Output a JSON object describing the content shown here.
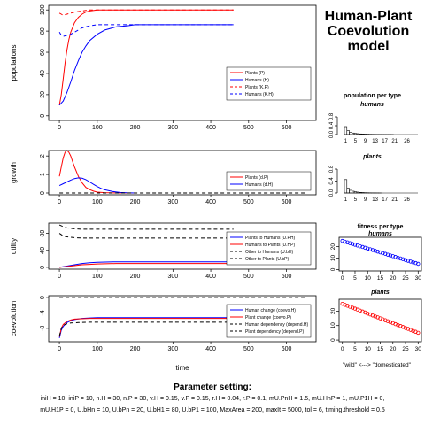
{
  "title_lines": [
    "Human-Plant",
    "Coevolution",
    "model"
  ],
  "parameters": {
    "heading": "Parameter setting:",
    "line1": "iniH = 10, iniP = 10, n.H = 30, n.P = 30, v.H = 0.15, v.P = 0.15, r.H = 0.04, r.P = 0.1, mU.PnH = 1.5, mU.HnP = 1, mU.P1H = 0,",
    "line2": "mU.H1P = 0, U.bHn = 10, U.bPn = 20, U.bH1 = 80, U.bP1 = 100, MaxArea = 200, maxIt = 5000, tol = 6, timing.threshold = 0.5"
  },
  "colors": {
    "plants": "#ff0000",
    "humans": "#0000ff",
    "axis": "#000000",
    "grid_dash": "#000000",
    "fitness_humans": "#0000ff",
    "fitness_plants": "#ff0000"
  },
  "chart_data": [
    {
      "id": "populations",
      "type": "line",
      "ylabel": "populations",
      "xlim": [
        0,
        650
      ],
      "ylim": [
        0,
        100
      ],
      "xticks": [
        0,
        100,
        200,
        300,
        400,
        500,
        600
      ],
      "yticks": [
        0,
        20,
        40,
        60,
        80,
        100
      ],
      "legend": {
        "position": "right",
        "entries": [
          "Plants (P)",
          "Humans (H)",
          "Plants (K.P)",
          "Humans (K.H)"
        ]
      },
      "series": [
        {
          "name": "Plants (P)",
          "color": "#ff0000",
          "dash": false,
          "x": [
            0,
            5,
            10,
            15,
            20,
            25,
            30,
            40,
            50,
            60,
            70,
            80,
            100,
            120,
            150,
            200,
            250,
            300,
            350,
            400,
            460
          ],
          "y": [
            10,
            20,
            35,
            50,
            62,
            72,
            79,
            88,
            93,
            96,
            98,
            99,
            100,
            100,
            100,
            100,
            100,
            100,
            100,
            100,
            100
          ]
        },
        {
          "name": "Humans (H)",
          "color": "#0000ff",
          "dash": false,
          "x": [
            0,
            10,
            20,
            30,
            40,
            50,
            60,
            70,
            80,
            100,
            120,
            150,
            180,
            200,
            250,
            300,
            350,
            400,
            460
          ],
          "y": [
            10,
            14,
            22,
            32,
            43,
            52,
            60,
            66,
            71,
            77,
            81,
            84,
            85,
            86,
            86,
            86,
            86,
            86,
            86
          ]
        },
        {
          "name": "Plants (K.P)",
          "color": "#ff0000",
          "dash": true,
          "x": [
            0,
            5,
            10,
            20,
            30,
            40,
            60,
            80,
            100,
            150,
            200,
            300,
            400,
            460
          ],
          "y": [
            97,
            96,
            95,
            96,
            97,
            98,
            99,
            100,
            100,
            100,
            100,
            100,
            100,
            100
          ]
        },
        {
          "name": "Humans (K.H)",
          "color": "#0000ff",
          "dash": true,
          "x": [
            0,
            5,
            10,
            20,
            30,
            40,
            50,
            60,
            80,
            100,
            150,
            200,
            300,
            400,
            460
          ],
          "y": [
            79,
            76,
            75,
            76,
            77,
            79,
            81,
            83,
            85,
            86,
            86,
            86,
            86,
            86,
            86
          ]
        }
      ]
    },
    {
      "id": "growth",
      "type": "line",
      "ylabel": "growth",
      "xlim": [
        0,
        650
      ],
      "ylim": [
        0,
        2.2
      ],
      "xticks": [
        0,
        100,
        200,
        300,
        400,
        500,
        600
      ],
      "yticks": [
        0.0,
        1.0,
        2.0
      ],
      "legend": {
        "position": "right",
        "entries": [
          "Plants (d.P)",
          "Humans (d.H)"
        ]
      },
      "series": [
        {
          "name": "Plants (d.P)",
          "color": "#ff0000",
          "dash": false,
          "x": [
            0,
            5,
            10,
            15,
            20,
            25,
            30,
            35,
            40,
            50,
            60,
            70,
            80,
            90,
            100,
            120,
            150,
            200
          ],
          "y": [
            0.9,
            1.4,
            1.9,
            2.2,
            2.3,
            2.2,
            2.0,
            1.7,
            1.4,
            0.9,
            0.55,
            0.3,
            0.18,
            0.1,
            0.05,
            0.02,
            0.0,
            0.0
          ]
        },
        {
          "name": "Humans (d.H)",
          "color": "#0000ff",
          "dash": false,
          "x": [
            0,
            10,
            20,
            30,
            40,
            50,
            60,
            70,
            80,
            90,
            100,
            110,
            120,
            140,
            160,
            180,
            200
          ],
          "y": [
            0.4,
            0.5,
            0.6,
            0.7,
            0.78,
            0.82,
            0.8,
            0.72,
            0.6,
            0.47,
            0.35,
            0.25,
            0.17,
            0.08,
            0.03,
            0.01,
            0.0
          ]
        },
        {
          "name": "",
          "color": "#000000",
          "dash": true,
          "x": [
            0,
            650
          ],
          "y": [
            0,
            0
          ]
        }
      ]
    },
    {
      "id": "utility",
      "type": "line",
      "ylabel": "utility",
      "xlim": [
        0,
        650
      ],
      "ylim": [
        0,
        100
      ],
      "xticks": [
        0,
        100,
        200,
        300,
        400,
        500,
        600
      ],
      "yticks": [
        0,
        40,
        80
      ],
      "legend": {
        "position": "right",
        "entries": [
          "Plants to Humans (U.PH)",
          "Humans to Plants (U.HP)",
          "Other to Humans (U.bH)",
          "Other to Plants (U.bP)"
        ]
      },
      "series": [
        {
          "name": "Plants to Humans (U.PH)",
          "color": "#0000ff",
          "dash": false,
          "x": [
            0,
            20,
            40,
            60,
            80,
            100,
            150,
            200,
            300,
            460
          ],
          "y": [
            0,
            3,
            6,
            9,
            11,
            12,
            13,
            13,
            13,
            13
          ]
        },
        {
          "name": "Humans to Plants (U.HP)",
          "color": "#ff0000",
          "dash": false,
          "x": [
            0,
            20,
            40,
            60,
            80,
            100,
            150,
            200,
            300,
            460
          ],
          "y": [
            0,
            2,
            4,
            6,
            7,
            8,
            9,
            9,
            9,
            9
          ]
        },
        {
          "name": "Other to Humans (U.bH)",
          "color": "#000000",
          "dash": true,
          "x": [
            0,
            10,
            20,
            40,
            60,
            100,
            200,
            460
          ],
          "y": [
            80,
            74,
            72,
            70,
            69,
            69,
            69,
            69
          ]
        },
        {
          "name": "Other to Plants (U.bP)",
          "color": "#000000",
          "dash": true,
          "x": [
            0,
            10,
            20,
            40,
            60,
            100,
            200,
            460
          ],
          "y": [
            100,
            96,
            93,
            91,
            90,
            90,
            90,
            90
          ]
        }
      ]
    },
    {
      "id": "coevolution",
      "type": "line",
      "ylabel": "coevolution",
      "xlabel": "time",
      "xlim": [
        0,
        650
      ],
      "ylim": [
        -11,
        0
      ],
      "xticks": [
        0,
        100,
        200,
        300,
        400,
        500,
        600
      ],
      "yticks": [
        0,
        -4,
        -8
      ],
      "legend": {
        "position": "right",
        "entries": [
          "Human change (coevo.H)",
          "Plant change (coevo.P)",
          "Human dependency (depend.H)",
          "Plant dependency (depend.P)"
        ]
      },
      "series": [
        {
          "name": "Human change (coevo.H)",
          "color": "#0000ff",
          "dash": false,
          "x": [
            0,
            5,
            10,
            20,
            30,
            40,
            60,
            80,
            100,
            150,
            200,
            300,
            460
          ],
          "y": [
            -10.5,
            -8.5,
            -7.5,
            -6.5,
            -6.0,
            -5.7,
            -5.4,
            -5.3,
            -5.2,
            -5.2,
            -5.2,
            -5.2,
            -5.2
          ]
        },
        {
          "name": "Plant change (coevo.P)",
          "color": "#ff0000",
          "dash": false,
          "x": [
            0,
            5,
            10,
            20,
            30,
            40,
            60,
            80,
            100,
            150,
            200,
            300,
            460
          ],
          "y": [
            -10.2,
            -8.0,
            -7.0,
            -6.2,
            -5.8,
            -5.6,
            -5.5,
            -5.4,
            -5.4,
            -5.4,
            -5.4,
            -5.4,
            -5.4
          ]
        },
        {
          "name": "Human dependency (depend.H)",
          "color": "#000000",
          "dash": true,
          "x": [
            0,
            5,
            10,
            20,
            30,
            50,
            80,
            100,
            150,
            200,
            300,
            460
          ],
          "y": [
            -10.0,
            -8.0,
            -7.2,
            -6.8,
            -6.6,
            -6.5,
            -6.4,
            -6.4,
            -6.4,
            -6.4,
            -6.4,
            -6.4
          ]
        },
        {
          "name": "Plant dependency (depend.P)",
          "color": "#000000",
          "dash": true,
          "x": [
            0,
            650
          ],
          "y": [
            0,
            0
          ]
        }
      ]
    },
    {
      "id": "population-per-type-humans",
      "type": "bar",
      "title": "population per type",
      "subtitle": "humans",
      "ylim": [
        0,
        0.8
      ],
      "yticks": [
        0.0,
        0.4,
        0.8
      ],
      "xticks": [
        1,
        5,
        9,
        13,
        17,
        21,
        26
      ],
      "categories": [
        1,
        2,
        3,
        4,
        5,
        6,
        7,
        8,
        9,
        10,
        11,
        12,
        13,
        14,
        15,
        16,
        17,
        18,
        19,
        20,
        21,
        22,
        23,
        24,
        25,
        26,
        27,
        28,
        29,
        30
      ],
      "values": [
        0.36,
        0.18,
        0.1,
        0.07,
        0.05,
        0.04,
        0.03,
        0.025,
        0.02,
        0.015,
        0.012,
        0.01,
        0.008,
        0.006,
        0.005,
        0.004,
        0.003,
        0.002,
        0.002,
        0.001,
        0,
        0,
        0,
        0,
        0,
        0,
        0,
        0,
        0,
        0
      ]
    },
    {
      "id": "population-per-type-plants",
      "type": "bar",
      "subtitle": "plants",
      "ylim": [
        0,
        0.8
      ],
      "yticks": [
        0.0,
        0.4,
        0.8
      ],
      "xticks": [
        1,
        5,
        9,
        13,
        17,
        21,
        26
      ],
      "categories": [
        1,
        2,
        3,
        4,
        5,
        6,
        7,
        8,
        9,
        10,
        11,
        12,
        13,
        14,
        15,
        16,
        17,
        18,
        19,
        20,
        21,
        22,
        23,
        24,
        25,
        26,
        27,
        28,
        29,
        30
      ],
      "values": [
        0.45,
        0.16,
        0.09,
        0.06,
        0.04,
        0.03,
        0.02,
        0.015,
        0.01,
        0.008,
        0.006,
        0.004,
        0.003,
        0.002,
        0.001,
        0,
        0,
        0,
        0,
        0,
        0,
        0,
        0,
        0,
        0,
        0,
        0,
        0,
        0,
        0
      ]
    },
    {
      "id": "fitness-per-type-humans",
      "type": "scatter",
      "title": "fitness per type",
      "subtitle": "humans",
      "color": "#0000ff",
      "xlim": [
        0,
        30
      ],
      "ylim": [
        0,
        27
      ],
      "xticks": [
        0,
        5,
        10,
        15,
        20,
        25,
        30
      ],
      "yticks": [
        0,
        10,
        20
      ],
      "x": [
        0,
        1,
        2,
        3,
        4,
        5,
        6,
        7,
        8,
        9,
        10,
        11,
        12,
        13,
        14,
        15,
        16,
        17,
        18,
        19,
        20,
        21,
        22,
        23,
        24,
        25,
        26,
        27,
        28,
        29,
        30
      ],
      "y": [
        25,
        24.3,
        23.7,
        23.0,
        22.3,
        21.7,
        21.0,
        20.3,
        19.7,
        19.0,
        18.3,
        17.7,
        17.0,
        16.3,
        15.7,
        15.0,
        14.3,
        13.7,
        13.0,
        12.3,
        11.7,
        11.0,
        10.3,
        9.7,
        9.0,
        8.3,
        7.7,
        7.0,
        6.3,
        5.7,
        5.0
      ]
    },
    {
      "id": "fitness-per-type-plants",
      "type": "scatter",
      "subtitle": "plants",
      "color": "#ff0000",
      "xlabel": "\"wild\" <---> \"domesticated\"",
      "xlim": [
        0,
        30
      ],
      "ylim": [
        0,
        27
      ],
      "xticks": [
        0,
        5,
        10,
        15,
        20,
        25,
        30
      ],
      "yticks": [
        0,
        10,
        20
      ],
      "x": [
        0,
        1,
        2,
        3,
        4,
        5,
        6,
        7,
        8,
        9,
        10,
        11,
        12,
        13,
        14,
        15,
        16,
        17,
        18,
        19,
        20,
        21,
        22,
        23,
        24,
        25,
        26,
        27,
        28,
        29,
        30
      ],
      "y": [
        25,
        24.3,
        23.7,
        23.0,
        22.3,
        21.7,
        21.0,
        20.3,
        19.7,
        19.0,
        18.3,
        17.7,
        17.0,
        16.3,
        15.7,
        15.0,
        14.3,
        13.7,
        13.0,
        12.3,
        11.7,
        11.0,
        10.3,
        9.7,
        9.0,
        8.3,
        7.7,
        7.0,
        6.3,
        5.7,
        5.0
      ]
    }
  ]
}
